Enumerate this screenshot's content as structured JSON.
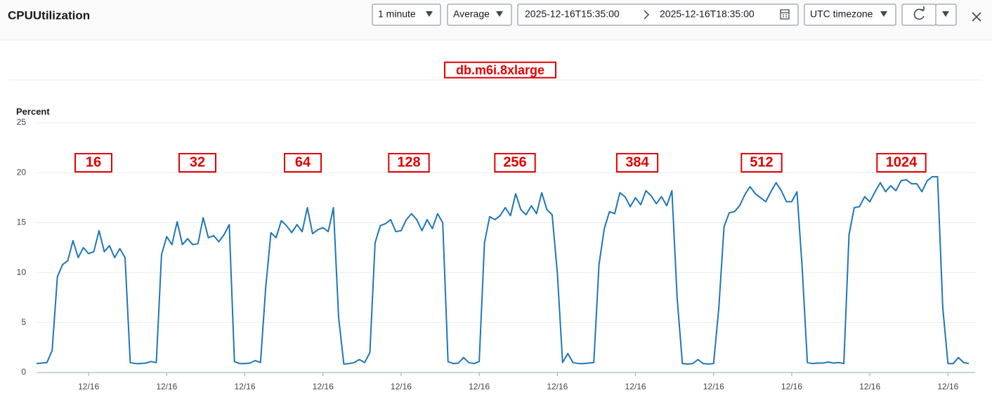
{
  "header": {
    "title": "CPUUtilization",
    "period": "1 minute",
    "statistic": "Average",
    "start": "2025-12-16T15:35:00",
    "end": "2025-12-16T18:35:00",
    "timezone": "UTC timezone"
  },
  "chart_data": {
    "type": "line",
    "title": "db.m6i.8xlarge",
    "y_label": "Percent",
    "annotations": [
      "16",
      "32",
      "64",
      "128",
      "256",
      "384",
      "512",
      "1024"
    ],
    "categories": [
      null,
      null,
      null,
      null,
      null,
      null,
      null,
      null,
      null,
      null,
      "12/16",
      null,
      null,
      null,
      null,
      null,
      null,
      null,
      null,
      null,
      null,
      null,
      null,
      null,
      null,
      "12/16",
      null,
      null,
      null,
      null,
      null,
      null,
      null,
      null,
      null,
      null,
      null,
      null,
      null,
      null,
      "12/16",
      null,
      null,
      null,
      null,
      null,
      null,
      null,
      null,
      null,
      null,
      null,
      null,
      null,
      null,
      "12/16",
      null,
      null,
      null,
      null,
      null,
      null,
      null,
      null,
      null,
      null,
      null,
      null,
      null,
      null,
      "12/16",
      null,
      null,
      null,
      null,
      null,
      null,
      null,
      null,
      null,
      null,
      null,
      null,
      null,
      null,
      "12/16",
      null,
      null,
      null,
      null,
      null,
      null,
      null,
      null,
      null,
      null,
      null,
      null,
      null,
      null,
      "12/16",
      null,
      null,
      null,
      null,
      null,
      null,
      null,
      null,
      null,
      null,
      null,
      null,
      null,
      null,
      "12/16",
      null,
      null,
      null,
      null,
      null,
      null,
      null,
      null,
      null,
      null,
      null,
      null,
      null,
      null,
      "12/16",
      null,
      null,
      null,
      null,
      null,
      null,
      null,
      null,
      null,
      null,
      null,
      null,
      null,
      null,
      "12/16",
      null,
      null,
      null,
      null,
      null,
      null,
      null,
      null,
      null,
      null,
      null,
      null,
      null,
      null,
      "12/16",
      null,
      null,
      null,
      null,
      null,
      null,
      null,
      null,
      null,
      null,
      null,
      null,
      null,
      null,
      "12/16",
      null,
      null,
      null,
      null
    ],
    "values": [
      0.9,
      0.95,
      1.0,
      2.2,
      9.6,
      10.8,
      11.2,
      13.2,
      11.5,
      12.5,
      11.9,
      12.1,
      14.2,
      12.1,
      12.7,
      11.5,
      12.4,
      11.5,
      1.0,
      0.9,
      0.9,
      0.95,
      1.1,
      1.0,
      11.8,
      13.6,
      12.8,
      15.1,
      12.8,
      13.4,
      12.8,
      12.9,
      15.5,
      13.5,
      13.7,
      13.1,
      13.8,
      14.8,
      1.1,
      0.9,
      0.9,
      0.95,
      1.2,
      1.0,
      8.5,
      14.0,
      13.5,
      15.2,
      14.7,
      14.0,
      14.8,
      14.1,
      16.5,
      13.9,
      14.3,
      14.5,
      14.1,
      16.5,
      5.5,
      0.85,
      0.9,
      1.0,
      1.3,
      1.0,
      2.0,
      13.0,
      14.7,
      14.9,
      15.3,
      14.1,
      14.2,
      15.3,
      15.9,
      15.3,
      14.2,
      15.3,
      14.4,
      15.9,
      15.0,
      1.1,
      0.9,
      0.95,
      1.5,
      1.0,
      0.9,
      1.1,
      13.0,
      15.6,
      15.3,
      15.7,
      16.5,
      15.7,
      17.9,
      16.3,
      15.8,
      16.7,
      15.9,
      18.0,
      16.3,
      15.8,
      10.0,
      1.0,
      1.9,
      1.0,
      0.9,
      0.9,
      0.95,
      1.0,
      10.8,
      14.4,
      16.1,
      15.9,
      18.0,
      17.6,
      16.6,
      17.5,
      16.8,
      18.2,
      17.7,
      16.9,
      17.6,
      16.7,
      18.2,
      7.5,
      0.9,
      0.85,
      0.9,
      1.3,
      0.9,
      0.85,
      0.9,
      6.5,
      14.6,
      16.0,
      16.1,
      16.7,
      17.8,
      18.6,
      17.9,
      17.5,
      17.1,
      18.1,
      19.0,
      18.2,
      17.1,
      17.1,
      18.1,
      10.5,
      1.0,
      0.9,
      0.95,
      0.95,
      1.05,
      0.95,
      1.0,
      0.9,
      13.8,
      16.5,
      16.6,
      17.6,
      17.1,
      18.1,
      19.0,
      18.1,
      18.7,
      18.2,
      19.2,
      19.3,
      18.9,
      18.9,
      18.1,
      19.2,
      19.6,
      19.6,
      6.5,
      0.9,
      0.9,
      1.5,
      1.0,
      0.9
    ],
    "color": "#1f77b4",
    "ylim": [
      0,
      25
    ],
    "yticks": [
      0,
      5,
      10,
      15,
      20,
      25
    ],
    "grid": true
  }
}
